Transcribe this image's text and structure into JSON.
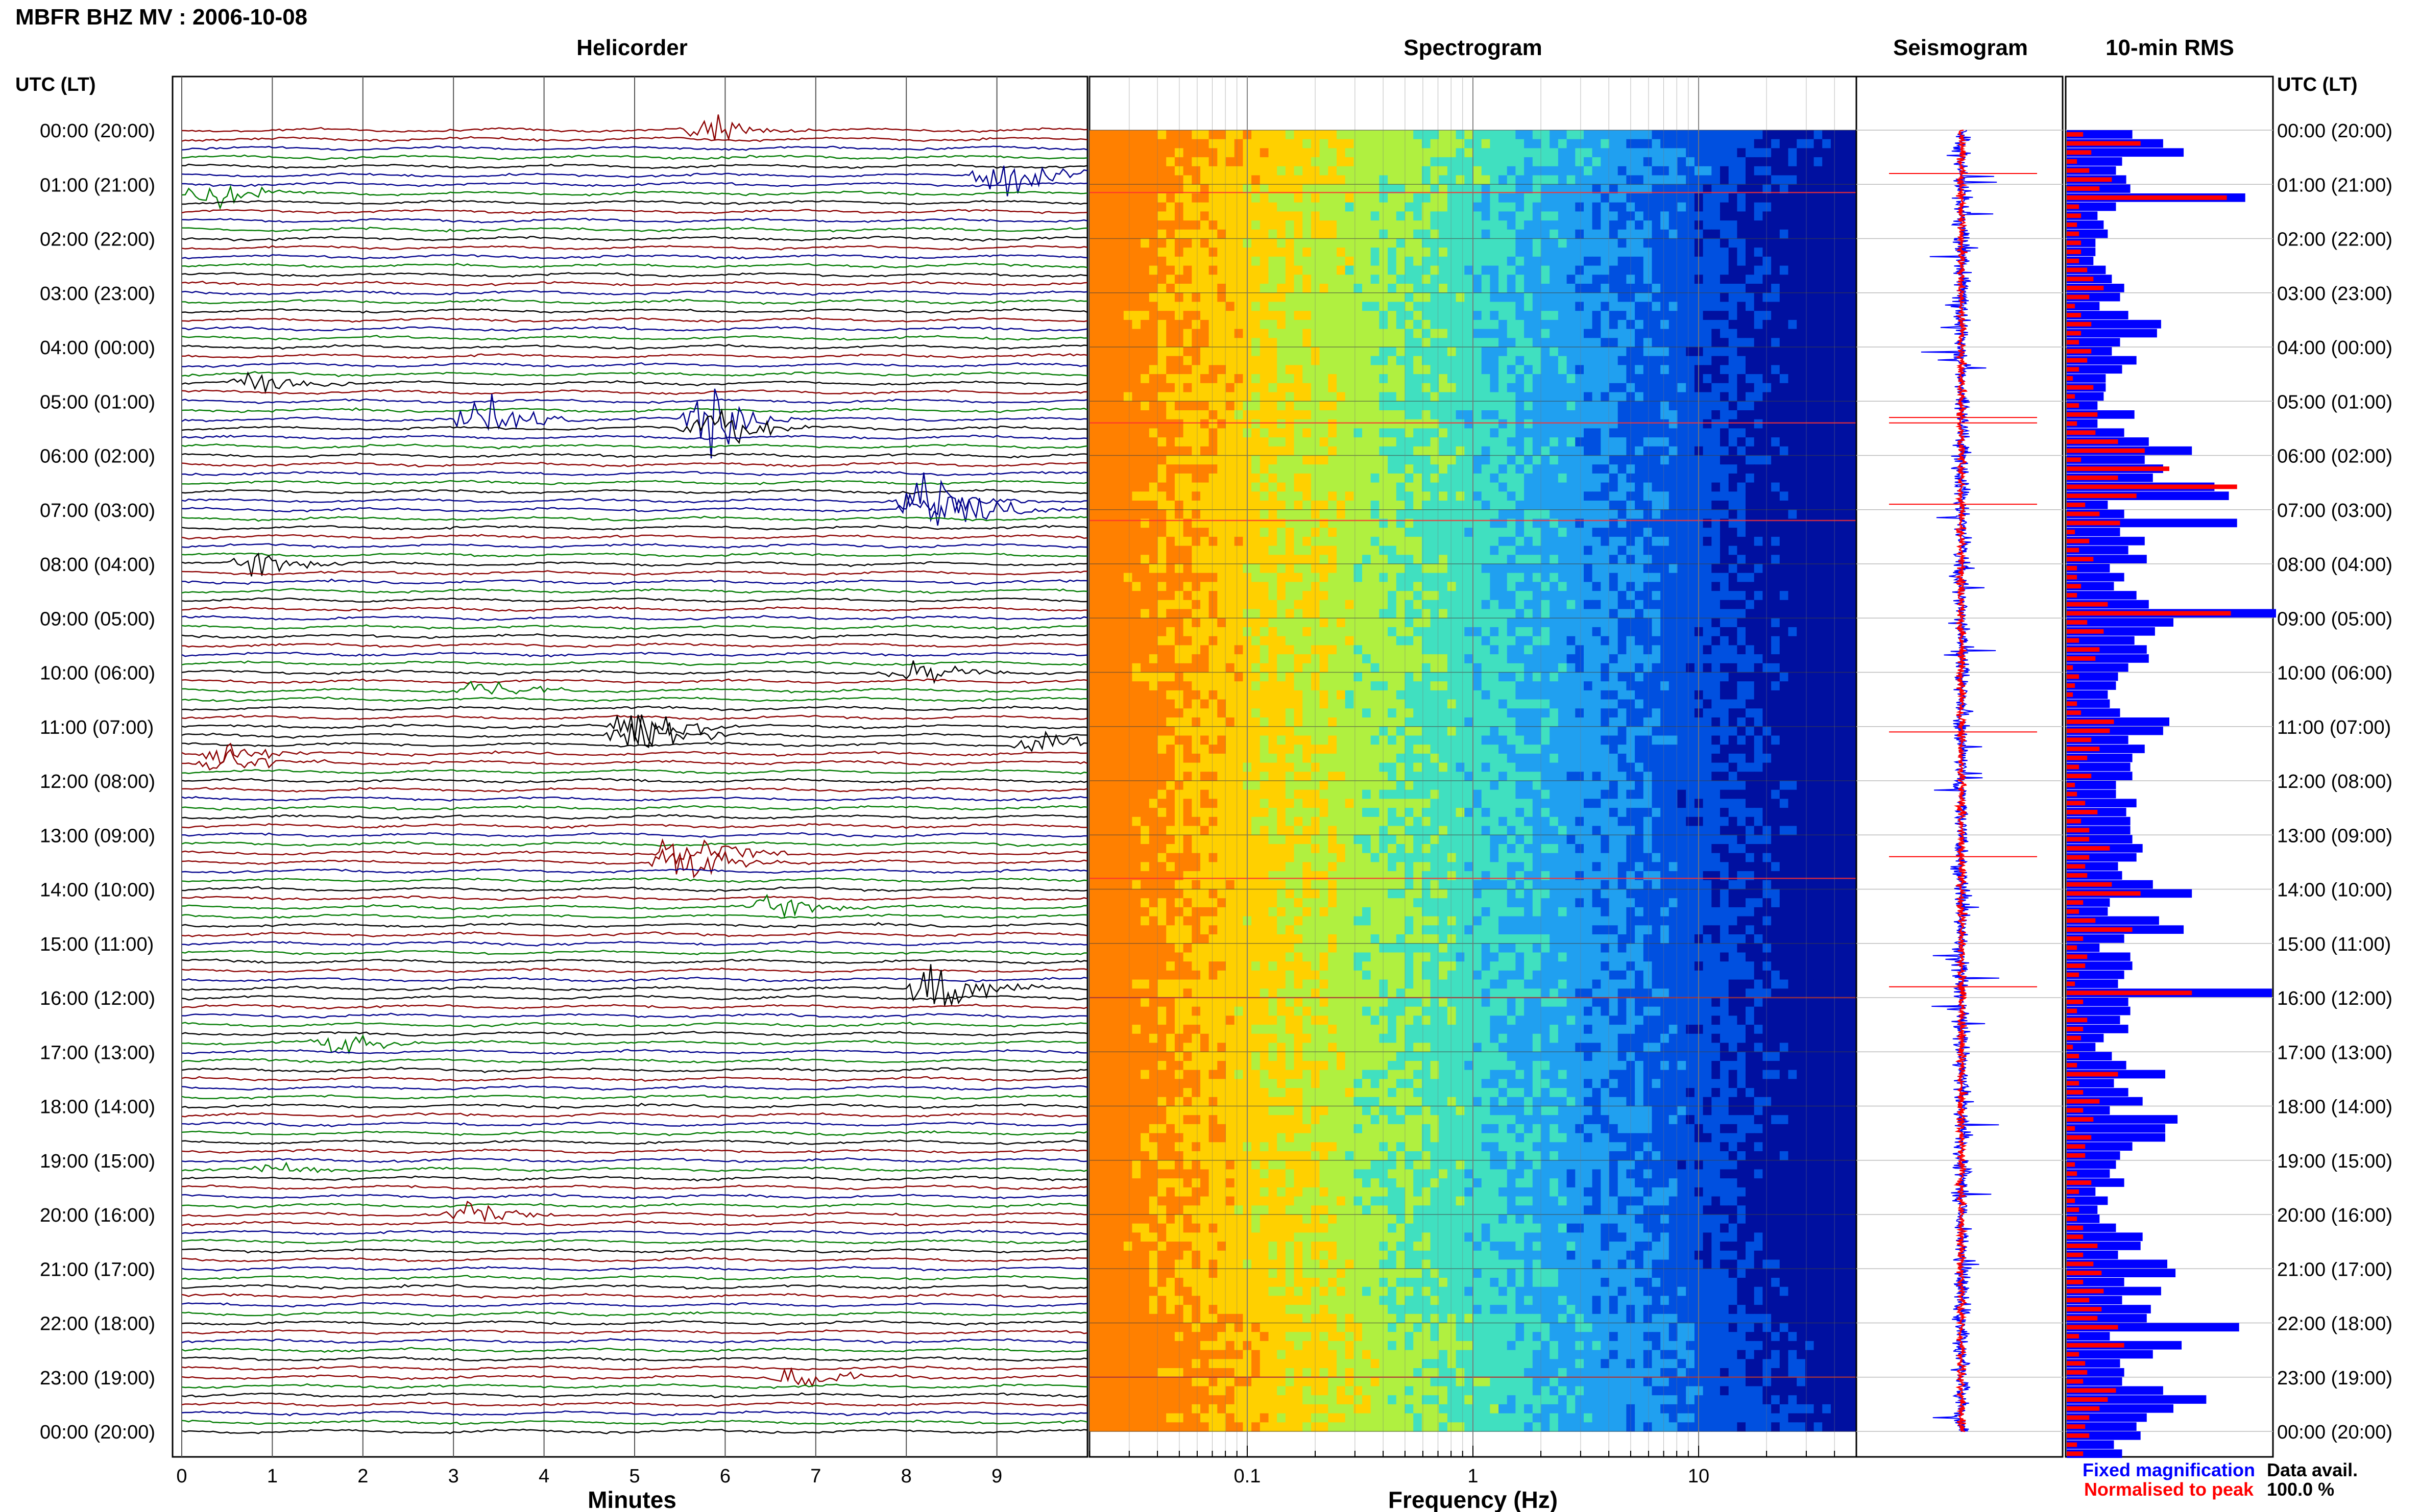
{
  "header": {
    "title": "MBFR BHZ MV : 2006-10-08",
    "left_axis_label": "UTC (LT)",
    "right_axis_label": "UTC (LT)"
  },
  "panels": {
    "helicorder": "Helicorder",
    "spectrogram": "Spectrogram",
    "seismogram": "Seismogram",
    "rms": "10-min RMS"
  },
  "legend": {
    "fixed": "Fixed magnification",
    "normalised": "Normalised to peak",
    "fixed_color": "#0000ff",
    "normalised_color": "#ff0000"
  },
  "data_avail": {
    "label": "Data avail.",
    "value": "100.0 %"
  },
  "chart_data": [
    {
      "type": "line",
      "title": "Helicorder",
      "xlabel": "Minutes",
      "x_ticks": [
        "0",
        "1",
        "2",
        "3",
        "4",
        "5",
        "6",
        "7",
        "8",
        "9"
      ],
      "xlim": [
        0,
        10
      ],
      "rows_per_hour": 6,
      "hour_rows": 24,
      "y_tick_labels": [
        "00:00 (20:00)",
        "01:00 (21:00)",
        "02:00 (22:00)",
        "03:00 (23:00)",
        "04:00 (00:00)",
        "05:00 (01:00)",
        "06:00 (02:00)",
        "07:00 (03:00)",
        "08:00 (04:00)",
        "09:00 (05:00)",
        "10:00 (06:00)",
        "11:00 (07:00)",
        "12:00 (08:00)",
        "13:00 (09:00)",
        "14:00 (10:00)",
        "15:00 (11:00)",
        "16:00 (12:00)",
        "17:00 (13:00)",
        "18:00 (14:00)",
        "19:00 (15:00)",
        "20:00 (16:00)",
        "21:00 (17:00)",
        "22:00 (18:00)",
        "23:00 (19:00)",
        "00:00 (20:00)"
      ],
      "trace_colors": [
        "#000000",
        "#8b0000",
        "#00008b",
        "#007a00"
      ],
      "events_minutes": [
        {
          "hour_row": 0.0,
          "minute": 5.8,
          "amp": "medium",
          "color": "#8b0000"
        },
        {
          "hour_row": 0.8,
          "minute": 9.0,
          "amp": "large",
          "color": "#00008b"
        },
        {
          "hour_row": 1.1,
          "minute": 0.3,
          "amp": "medium",
          "color": "#007a00"
        },
        {
          "hour_row": 4.7,
          "minute": 0.8,
          "amp": "medium",
          "color": "#000000"
        },
        {
          "hour_row": 5.3,
          "minute": 3.3,
          "amp": "large",
          "color": "#00008b"
        },
        {
          "hour_row": 5.4,
          "minute": 5.8,
          "amp": "large",
          "color": "#000000"
        },
        {
          "hour_row": 6.9,
          "minute": 8.2,
          "amp": "large",
          "color": "#00008b"
        },
        {
          "hour_row": 7.0,
          "minute": 8.8,
          "amp": "medium",
          "color": "#007a00"
        },
        {
          "hour_row": 8.0,
          "minute": 0.8,
          "amp": "medium",
          "color": "#000000"
        },
        {
          "hour_row": 10.0,
          "minute": 8.0,
          "amp": "medium",
          "color": "#000000"
        },
        {
          "hour_row": 10.3,
          "minute": 3.3,
          "amp": "medium",
          "color": "#007a00"
        },
        {
          "hour_row": 11.1,
          "minute": 5.0,
          "amp": "large",
          "color": "#000000"
        },
        {
          "hour_row": 11.3,
          "minute": 9.5,
          "amp": "medium",
          "color": "#000000"
        },
        {
          "hour_row": 11.6,
          "minute": 0.5,
          "amp": "medium",
          "color": "#8b0000"
        },
        {
          "hour_row": 13.4,
          "minute": 5.5,
          "amp": "large",
          "color": "#8b0000"
        },
        {
          "hour_row": 14.3,
          "minute": 6.5,
          "amp": "medium",
          "color": "#007a00"
        },
        {
          "hour_row": 15.8,
          "minute": 8.3,
          "amp": "large",
          "color": "#000000"
        },
        {
          "hour_row": 16.8,
          "minute": 1.7,
          "amp": "medium",
          "color": "#007a00"
        },
        {
          "hour_row": 19.1,
          "minute": 1.0,
          "amp": "small",
          "color": "#007a00"
        },
        {
          "hour_row": 20.0,
          "minute": 3.2,
          "amp": "medium",
          "color": "#8b0000"
        },
        {
          "hour_row": 23.0,
          "minute": 6.8,
          "amp": "medium",
          "color": "#8b0000"
        }
      ]
    },
    {
      "type": "heatmap",
      "title": "Spectrogram",
      "xlabel": "Frequency (Hz)",
      "x_scale": "log",
      "xlim": [
        0.02,
        50
      ],
      "x_tick_labels": [
        "0.1",
        "1",
        "10"
      ],
      "x_major_ticks": [
        0.1,
        1,
        10
      ],
      "colormap": [
        "#ff8000",
        "#ffd000",
        "#b0f040",
        "#40e0c0",
        "#20a0f0",
        "#0050e0",
        "#0010a0"
      ],
      "note_rows": [
        1.15,
        5.4,
        7.2,
        13.8,
        16.0,
        23.0
      ]
    },
    {
      "type": "line",
      "title": "Seismogram",
      "series": [
        {
          "name": "Fixed magnification",
          "color": "#0000ff"
        },
        {
          "name": "Normalised to peak",
          "color": "#ff0000"
        }
      ]
    },
    {
      "type": "bar",
      "title": "10-min RMS",
      "orientation": "horizontal",
      "series": [
        {
          "name": "Fixed magnification",
          "color": "#0000ff",
          "values": [
            0.32,
            0.47,
            0.57,
            0.27,
            0.24,
            0.29,
            0.31,
            0.87,
            0.24,
            0.15,
            0.18,
            0.2,
            0.14,
            0.14,
            0.13,
            0.19,
            0.22,
            0.28,
            0.26,
            0.16,
            0.3,
            0.46,
            0.44,
            0.26,
            0.22,
            0.34,
            0.27,
            0.19,
            0.19,
            0.18,
            0.15,
            0.33,
            0.15,
            0.28,
            0.4,
            0.61,
            0.38,
            0.47,
            0.42,
            0.72,
            0.79,
            0.2,
            0.28,
            0.83,
            0.26,
            0.38,
            0.3,
            0.39,
            0.21,
            0.28,
            0.23,
            0.34,
            0.4,
            1.02,
            0.52,
            0.43,
            0.33,
            0.39,
            0.4,
            0.3,
            0.25,
            0.24,
            0.2,
            0.21,
            0.26,
            0.5,
            0.47,
            0.3,
            0.38,
            0.32,
            0.31,
            0.32,
            0.24,
            0.24,
            0.34,
            0.29,
            0.31,
            0.31,
            0.32,
            0.37,
            0.34,
            0.25,
            0.27,
            0.42,
            0.61,
            0.21,
            0.2,
            0.45,
            0.57,
            0.28,
            0.16,
            0.31,
            0.32,
            0.28,
            0.25,
            1.0,
            0.3,
            0.31,
            0.26,
            0.3,
            0.18,
            0.14,
            0.22,
            0.29,
            0.48,
            0.23,
            0.3,
            0.37,
            0.21,
            0.54,
            0.48,
            0.48,
            0.32,
            0.26,
            0.24,
            0.21,
            0.28,
            0.14,
            0.2,
            0.15,
            0.16,
            0.24,
            0.37,
            0.36,
            0.25,
            0.49,
            0.53,
            0.28,
            0.46,
            0.27,
            0.41,
            0.39,
            0.84,
            0.21,
            0.56,
            0.42,
            0.26,
            0.28,
            0.27,
            0.47,
            0.68,
            0.52,
            0.39,
            0.34,
            0.36,
            0.23,
            0.27
          ]
        },
        {
          "name": "Normalised to peak",
          "color": "#ff0000",
          "values": [
            0.08,
            0.36,
            0.12,
            0.05,
            0.11,
            0.22,
            0.16,
            0.78,
            0.06,
            0.07,
            0.05,
            0.06,
            0.07,
            0.07,
            0.06,
            0.1,
            0.13,
            0.18,
            0.11,
            0.04,
            0.07,
            0.12,
            0.07,
            0.06,
            0.12,
            0.1,
            0.06,
            0.03,
            0.13,
            0.04,
            0.06,
            0.15,
            0.05,
            0.14,
            0.25,
            0.38,
            0.07,
            0.5,
            0.25,
            0.83,
            0.34,
            0.09,
            0.16,
            0.26,
            0.04,
            0.11,
            0.06,
            0.13,
            0.05,
            0.05,
            0.07,
            0.05,
            0.2,
            0.8,
            0.1,
            0.18,
            0.06,
            0.16,
            0.14,
            0.03,
            0.06,
            0.04,
            0.03,
            0.05,
            0.07,
            0.23,
            0.21,
            0.12,
            0.16,
            0.1,
            0.06,
            0.12,
            0.04,
            0.05,
            0.09,
            0.15,
            0.07,
            0.11,
            0.11,
            0.21,
            0.11,
            0.09,
            0.1,
            0.22,
            0.36,
            0.08,
            0.06,
            0.14,
            0.32,
            0.08,
            0.05,
            0.1,
            0.09,
            0.06,
            0.04,
            0.61,
            0.08,
            0.05,
            0.1,
            0.08,
            0.07,
            0.03,
            0.06,
            0.05,
            0.25,
            0.06,
            0.08,
            0.16,
            0.08,
            0.13,
            0.04,
            0.12,
            0.09,
            0.09,
            0.04,
            0.05,
            0.12,
            0.06,
            0.04,
            0.06,
            0.05,
            0.08,
            0.08,
            0.15,
            0.08,
            0.13,
            0.17,
            0.08,
            0.18,
            0.11,
            0.17,
            0.15,
            0.25,
            0.06,
            0.28,
            0.06,
            0.09,
            0.1,
            0.08,
            0.24,
            0.2,
            0.16,
            0.11,
            0.09,
            0.11,
            0.05,
            0.08
          ]
        }
      ]
    }
  ]
}
